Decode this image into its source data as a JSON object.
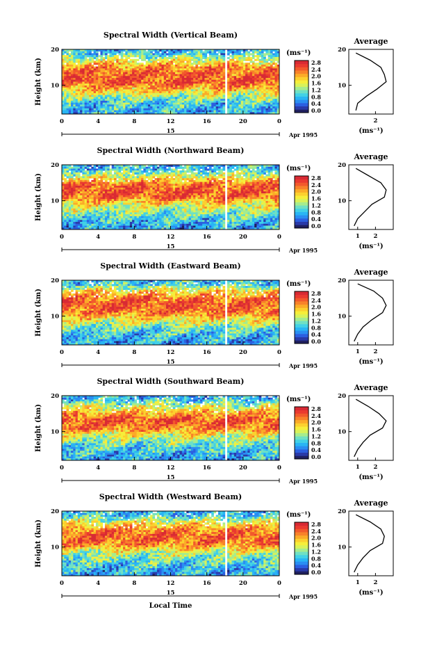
{
  "figure": {
    "date_label": "Apr 1995",
    "day_label": "15",
    "xlabel": "Local Time",
    "ylabel": "Height (km)",
    "unit_label": "(ms⁻¹)",
    "avg_title": "Average",
    "avg_xlabel": "(ms⁻¹)"
  },
  "colorbar": {
    "labels": [
      "2.8",
      "2.4",
      "2.0",
      "1.6",
      "1.2",
      "0.8",
      "0.4",
      "0.0"
    ],
    "colors": [
      "#202060",
      "#2a3aa8",
      "#2c5fe0",
      "#2a8ef2",
      "#29b5f4",
      "#42d1e6",
      "#6fe0c4",
      "#a6ec8e",
      "#d8f25a",
      "#f6ee3a",
      "#fcd02e",
      "#fbab28",
      "#f8822a",
      "#f25a2c",
      "#ea3a30",
      "#d82a34"
    ]
  },
  "chart_data": [
    {
      "type": "heatmap",
      "title": "Spectral Width (Vertical Beam)",
      "xlabel": "Local Time",
      "ylabel": "Height (km)",
      "x_ticks": [
        "0",
        "4",
        "8",
        "12",
        "16",
        "20",
        "0"
      ],
      "y_ticks": [
        "20",
        "10"
      ],
      "xlim": [
        0,
        24
      ],
      "ylim": [
        2,
        20
      ],
      "zlim": [
        0,
        3.0
      ],
      "gap_hour": 18.1,
      "profile": {
        "xlim": [
          0.5,
          3.0
        ],
        "x_ticks": [
          "2"
        ],
        "x_tick_values": [
          2
        ],
        "height_km": [
          3,
          5,
          7,
          9,
          11,
          13,
          15,
          17,
          19
        ],
        "values": [
          0.9,
          1.0,
          1.5,
          2.1,
          2.6,
          2.5,
          2.3,
          1.7,
          0.9
        ]
      }
    },
    {
      "type": "heatmap",
      "title": "Spectral Width (Northward Beam)",
      "xlabel": "Local Time",
      "ylabel": "Height (km)",
      "x_ticks": [
        "0",
        "4",
        "8",
        "12",
        "16",
        "20",
        "0"
      ],
      "y_ticks": [
        "20",
        "10"
      ],
      "xlim": [
        0,
        24
      ],
      "ylim": [
        2,
        20
      ],
      "zlim": [
        0,
        3.0
      ],
      "gap_hour": 18.1,
      "profile": {
        "xlim": [
          0.5,
          3.0
        ],
        "x_ticks": [
          "1",
          "2"
        ],
        "x_tick_values": [
          1,
          2
        ],
        "height_km": [
          3,
          5,
          7,
          9,
          11,
          13,
          15,
          17,
          19
        ],
        "values": [
          0.8,
          1.0,
          1.4,
          1.8,
          2.5,
          2.6,
          2.3,
          1.6,
          0.9
        ]
      }
    },
    {
      "type": "heatmap",
      "title": "Spectral Width (Eastward Beam)",
      "xlabel": "Local Time",
      "ylabel": "Height (km)",
      "x_ticks": [
        "0",
        "4",
        "8",
        "12",
        "16",
        "20",
        "0"
      ],
      "y_ticks": [
        "20",
        "10"
      ],
      "xlim": [
        0,
        24
      ],
      "ylim": [
        2,
        20
      ],
      "zlim": [
        0,
        3.0
      ],
      "gap_hour": 18.1,
      "profile": {
        "xlim": [
          0.5,
          3.0
        ],
        "x_ticks": [
          "1",
          "2"
        ],
        "x_tick_values": [
          1,
          2
        ],
        "height_km": [
          3,
          5,
          7,
          9,
          11,
          13,
          15,
          17,
          19
        ],
        "values": [
          0.8,
          1.0,
          1.3,
          1.8,
          2.4,
          2.6,
          2.4,
          1.9,
          1.0
        ]
      }
    },
    {
      "type": "heatmap",
      "title": "Spectral Width (Southward Beam)",
      "xlabel": "Local Time",
      "ylabel": "Height (km)",
      "x_ticks": [
        "0",
        "4",
        "8",
        "12",
        "16",
        "20",
        "0"
      ],
      "y_ticks": [
        "20",
        "10"
      ],
      "xlim": [
        0,
        24
      ],
      "ylim": [
        2,
        20
      ],
      "zlim": [
        0,
        3.0
      ],
      "gap_hour": 18.1,
      "profile": {
        "xlim": [
          0.5,
          3.0
        ],
        "x_ticks": [
          "1",
          "2"
        ],
        "x_tick_values": [
          1,
          2
        ],
        "height_km": [
          3,
          5,
          7,
          9,
          11,
          13,
          15,
          17,
          19
        ],
        "values": [
          0.8,
          1.0,
          1.3,
          1.7,
          2.4,
          2.6,
          2.2,
          1.6,
          0.9
        ]
      }
    },
    {
      "type": "heatmap",
      "title": "Spectral Width (Westward Beam)",
      "xlabel": "Local Time",
      "ylabel": "Height (km)",
      "x_ticks": [
        "0",
        "4",
        "8",
        "12",
        "16",
        "20",
        "0"
      ],
      "y_ticks": [
        "20",
        "10"
      ],
      "xlim": [
        0,
        24
      ],
      "ylim": [
        2,
        20
      ],
      "zlim": [
        0,
        3.0
      ],
      "gap_hour": 18.1,
      "profile": {
        "xlim": [
          0.5,
          3.0
        ],
        "x_ticks": [
          "1",
          "2"
        ],
        "x_tick_values": [
          1,
          2
        ],
        "height_km": [
          3,
          5,
          7,
          9,
          11,
          13,
          15,
          17,
          19
        ],
        "values": [
          0.8,
          1.0,
          1.3,
          1.7,
          2.4,
          2.5,
          2.3,
          1.7,
          0.9
        ]
      }
    }
  ]
}
